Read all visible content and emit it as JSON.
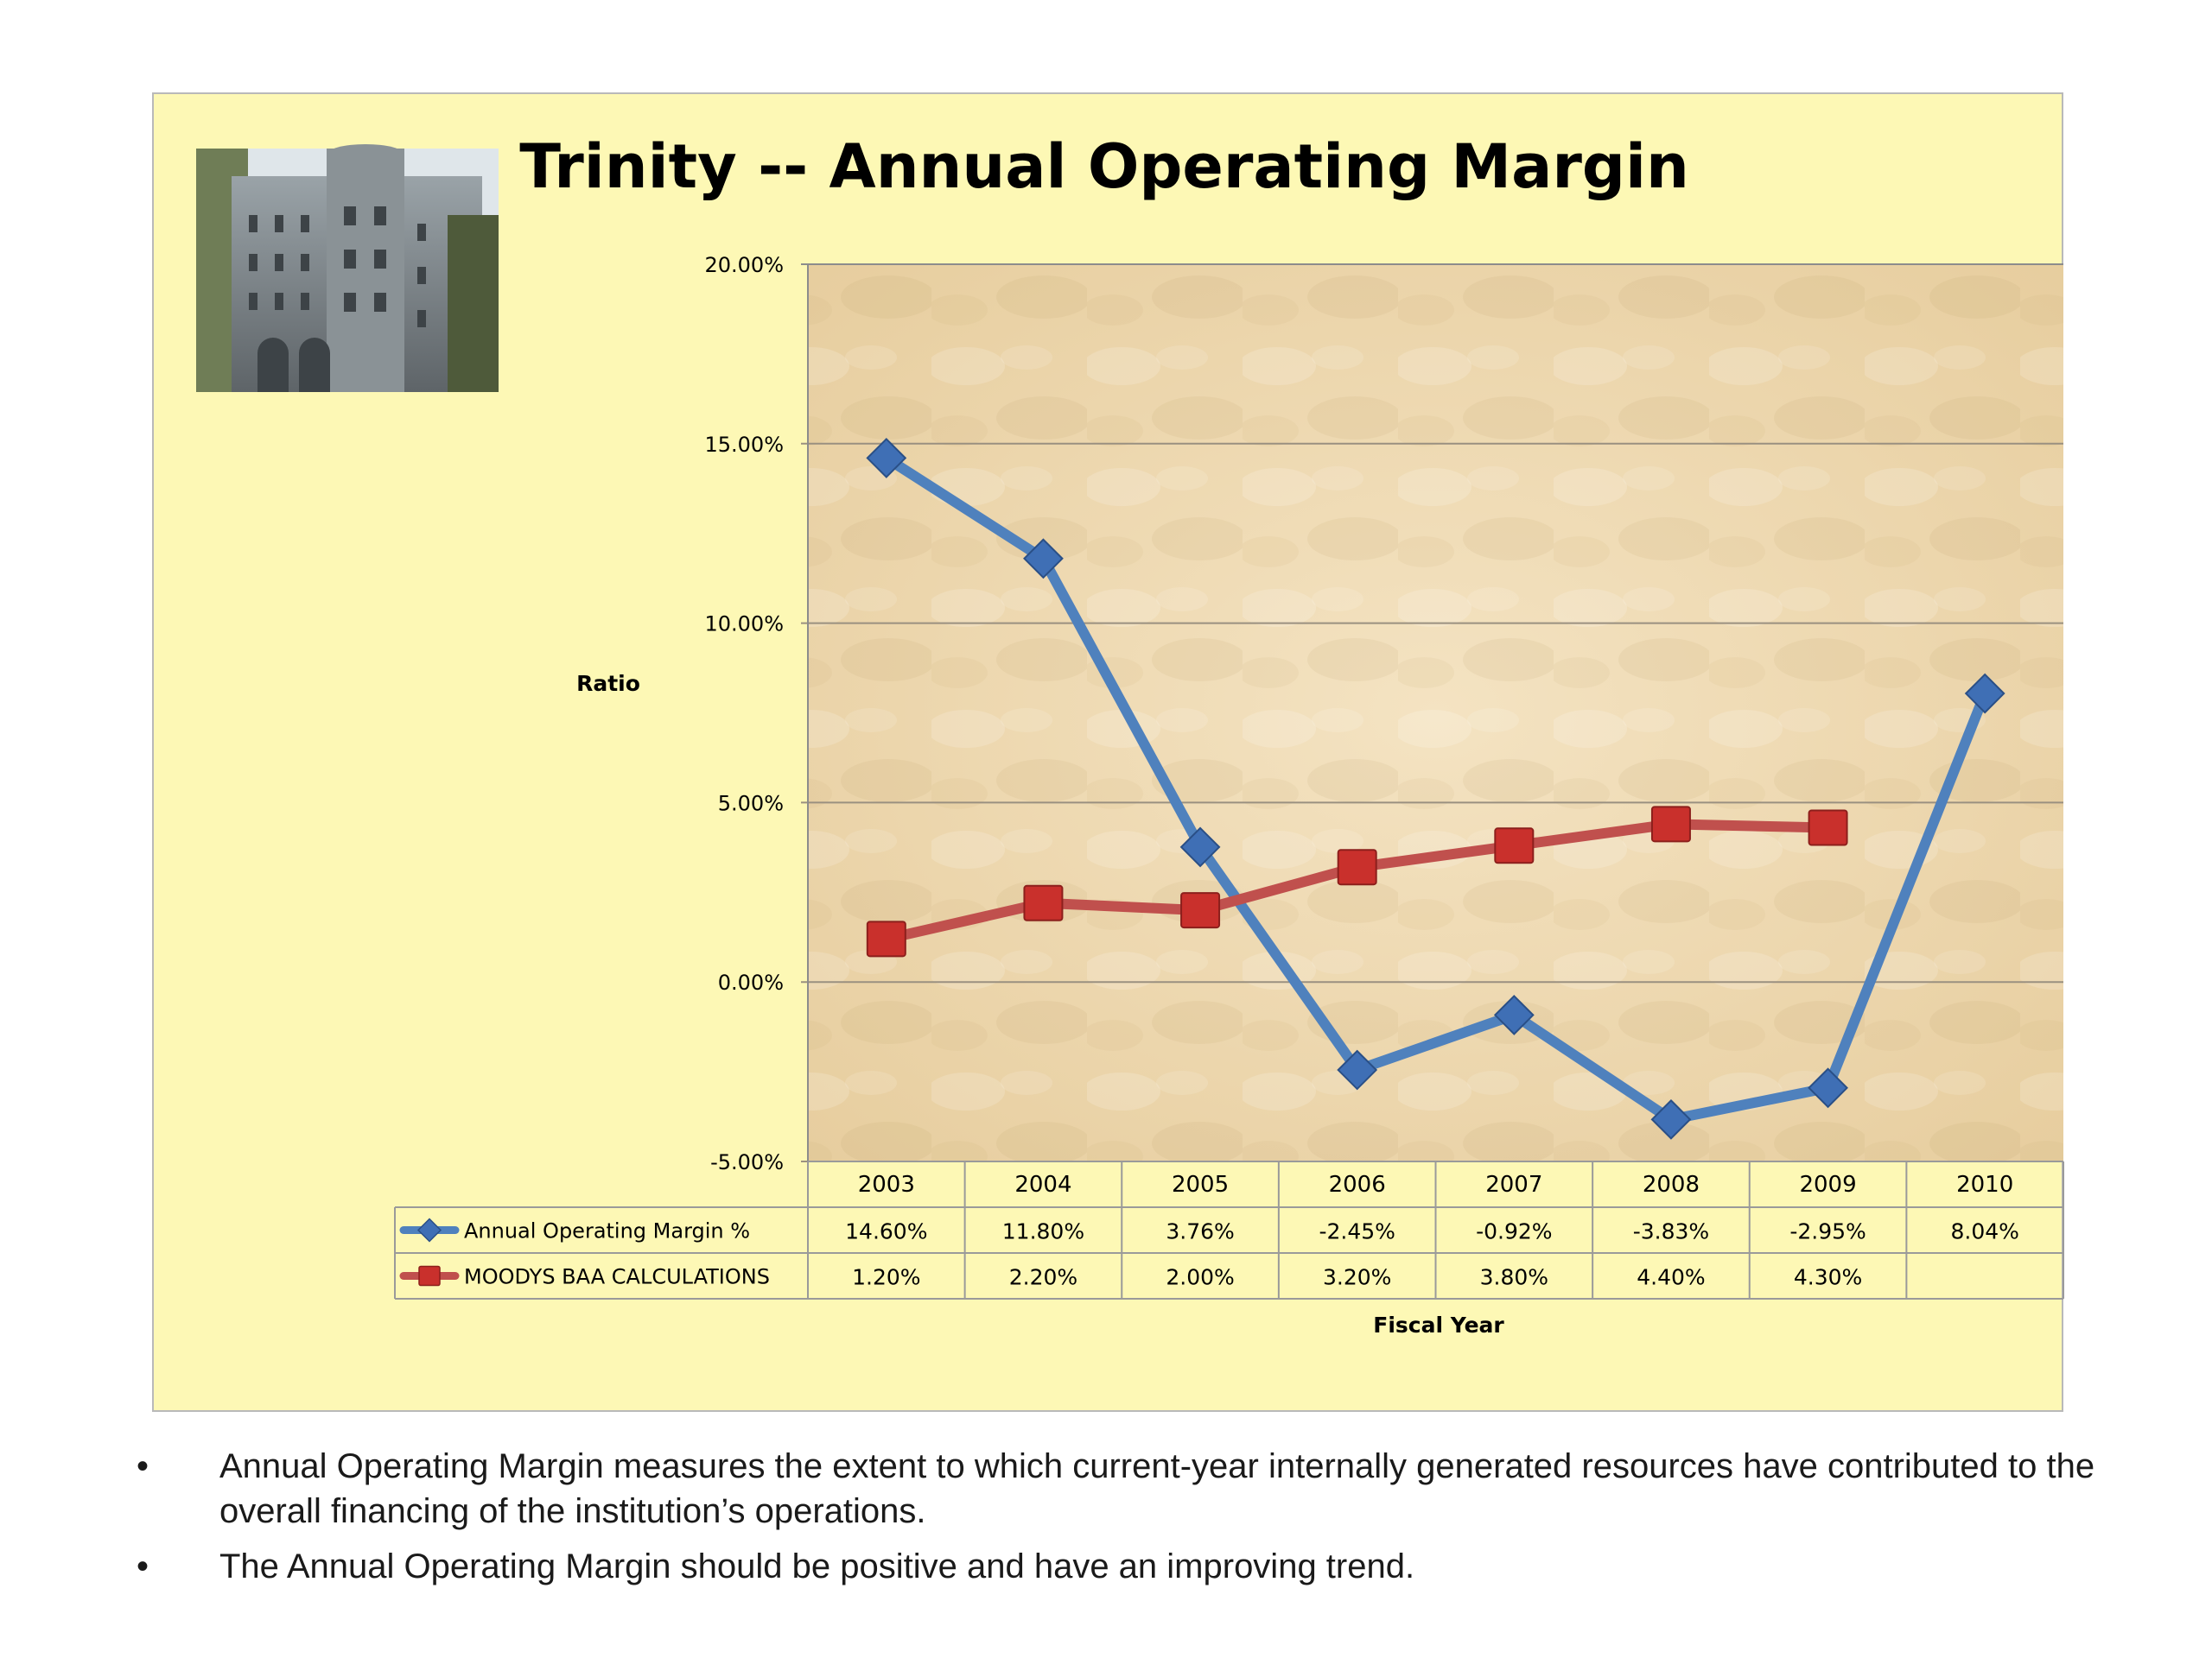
{
  "chart_data": {
    "type": "line",
    "title": "Trinity -- Annual Operating Margin",
    "ylabel": "Ratio",
    "xlabel": "Fiscal Year",
    "ylim": [
      -5,
      20
    ],
    "yticks": [
      20,
      15,
      10,
      5,
      0,
      -5
    ],
    "ytick_labels": [
      "20.00%",
      "15.00%",
      "10.00%",
      "5.00%",
      "0.00%",
      "-5.00%"
    ],
    "categories": [
      "2003",
      "2004",
      "2005",
      "2006",
      "2007",
      "2008",
      "2009",
      "2010"
    ],
    "grid": true,
    "legend_placement": "data-table",
    "series": [
      {
        "name": "Annual Operating Margin %",
        "color": "#4f81bd",
        "marker": "diamond",
        "values": [
          14.6,
          11.8,
          3.76,
          -2.45,
          -0.92,
          -3.83,
          -2.95,
          8.04
        ],
        "labels": [
          "14.60%",
          "11.80%",
          "3.76%",
          "-2.45%",
          "-0.92%",
          "-3.83%",
          "-2.95%",
          "8.04%"
        ]
      },
      {
        "name": "MOODYS BAA CALCULATIONS",
        "color": "#c0504d",
        "marker": "square",
        "values": [
          1.2,
          2.2,
          2.0,
          3.2,
          3.8,
          4.4,
          4.3,
          null
        ],
        "labels": [
          "1.20%",
          "2.20%",
          "2.00%",
          "3.20%",
          "3.80%",
          "4.40%",
          "4.30%",
          ""
        ]
      }
    ]
  },
  "bullets": [
    "Annual Operating Margin measures the extent to which current-year internally generated resources have contributed to the overall financing of the institution’s operations.",
    "The Annual Operating Margin should be positive and have an improving trend."
  ],
  "bullet_symbol": "•"
}
